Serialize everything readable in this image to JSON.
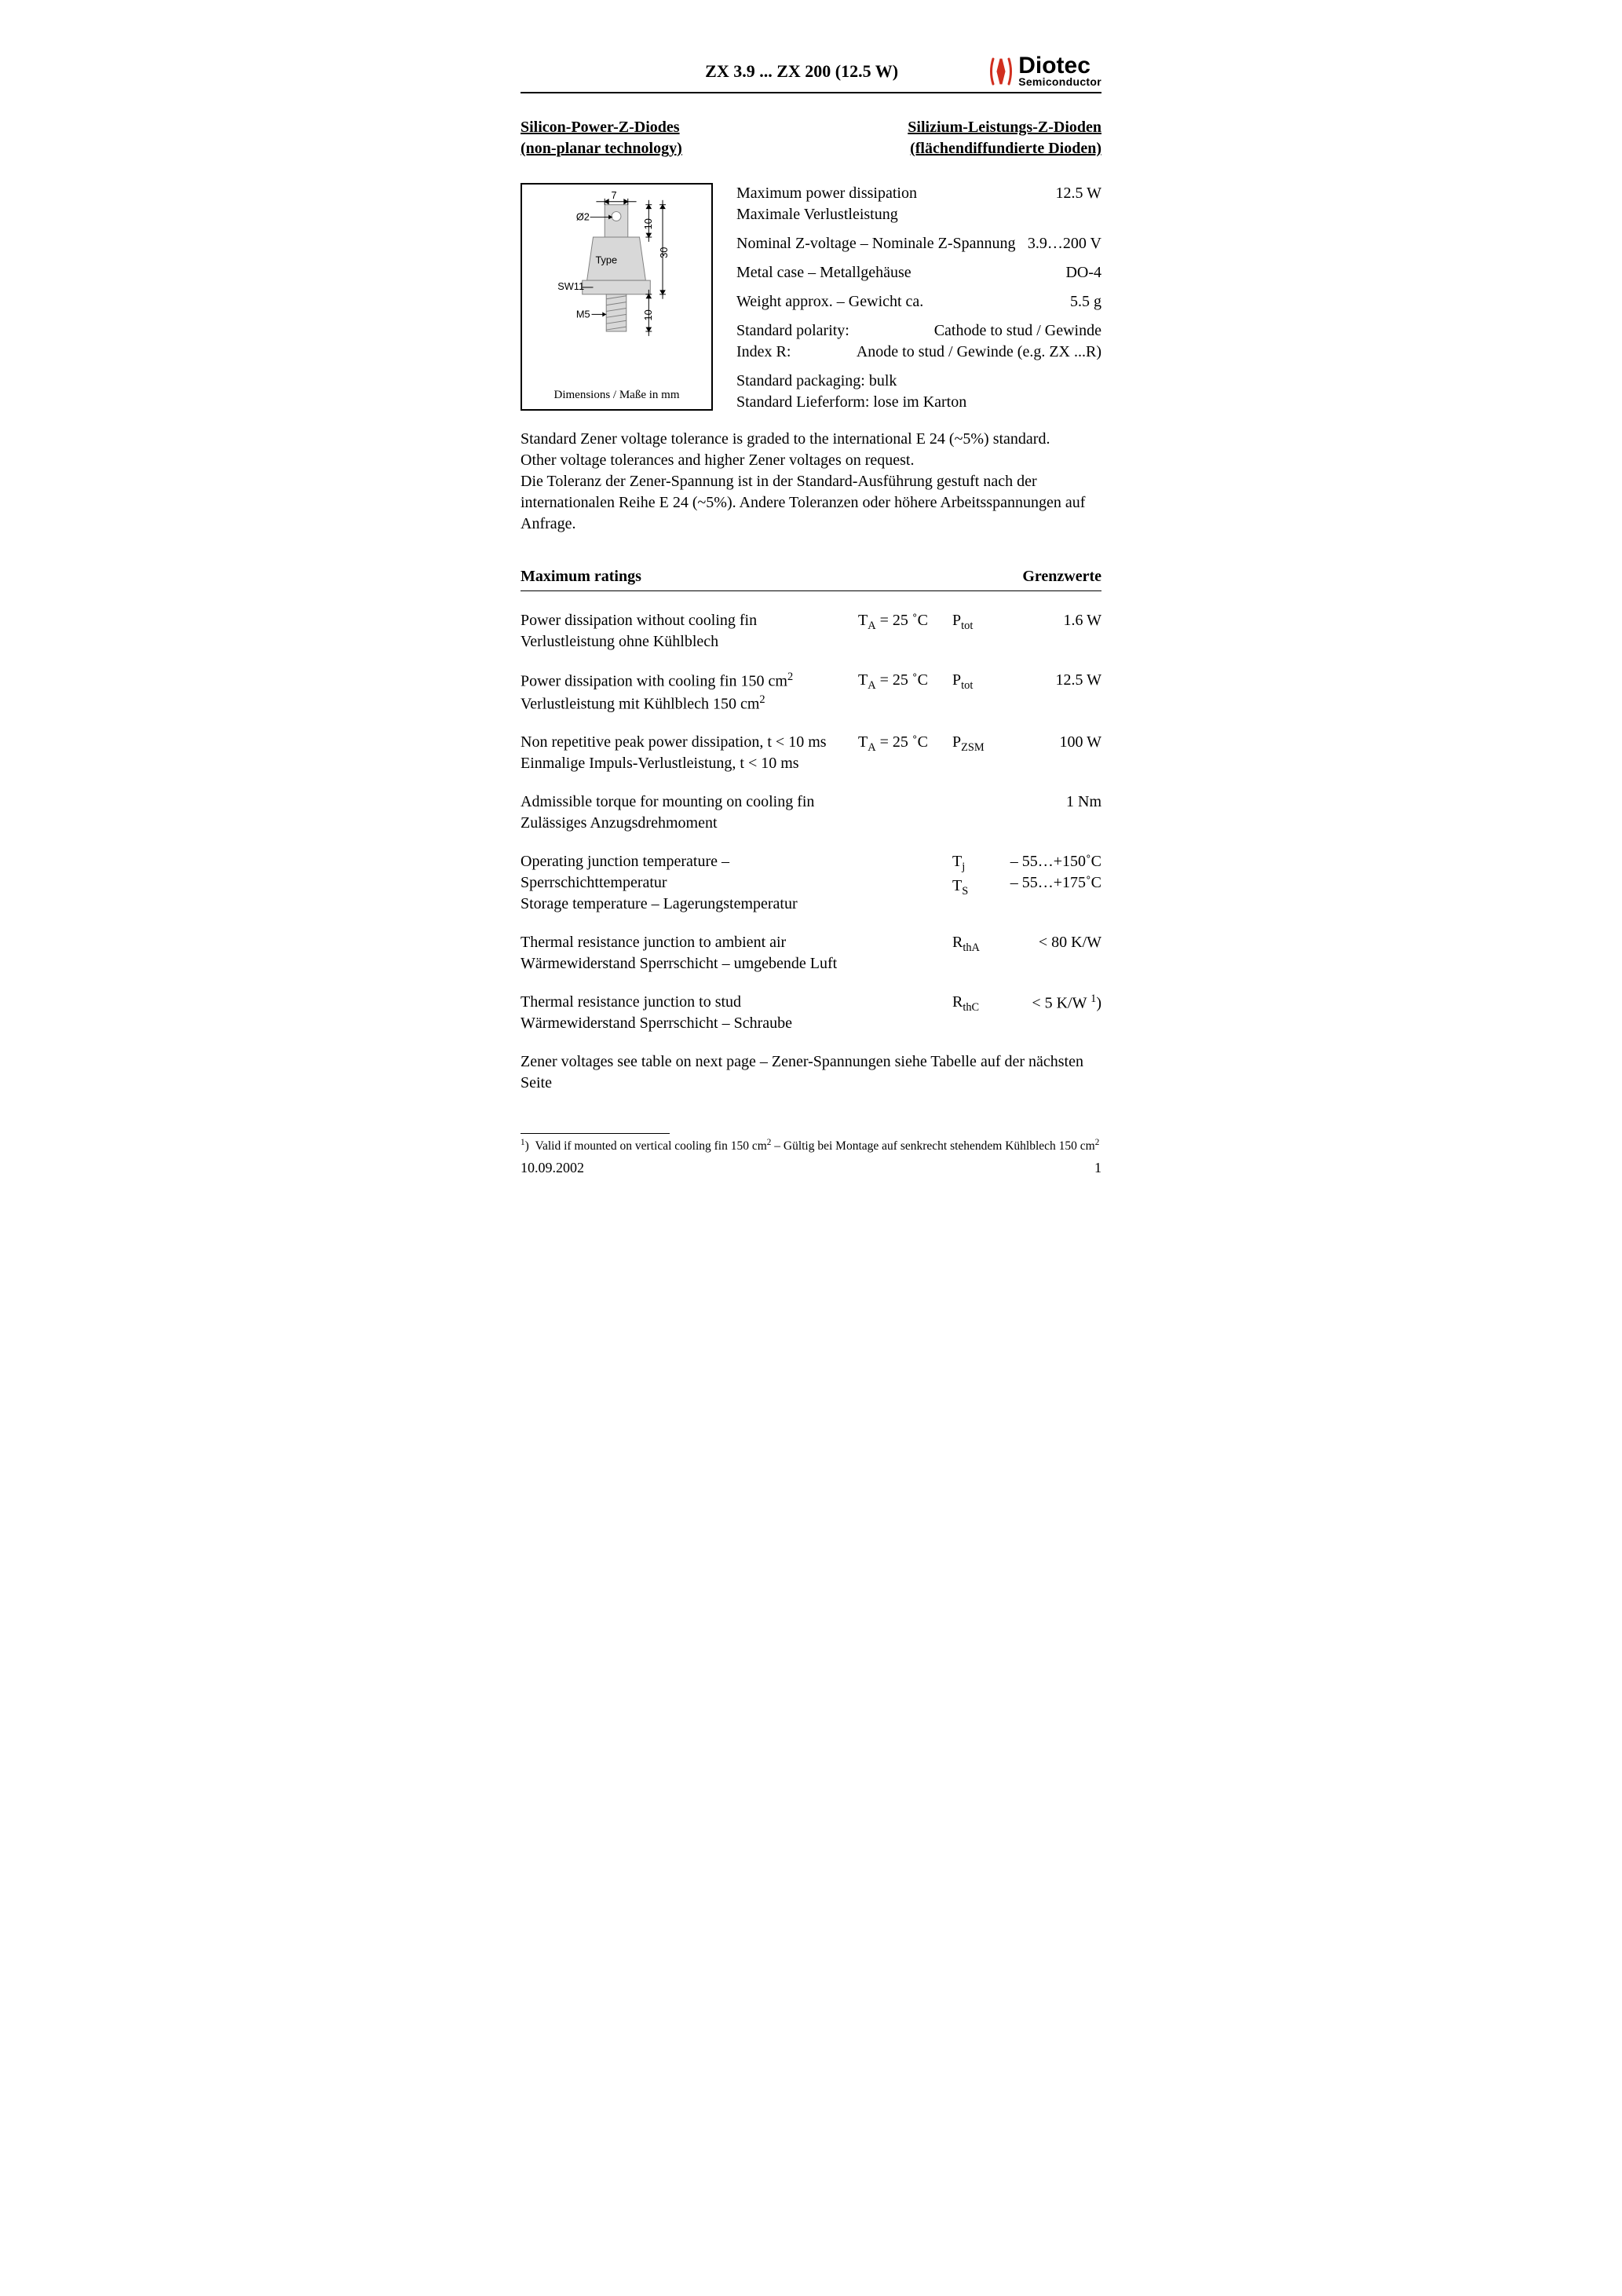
{
  "header": {
    "title": "ZX 3.9 ... ZX 200 (12.5 W)",
    "brand": "Diotec",
    "brand_sub": "Semiconductor",
    "brand_color": "#d12f1f"
  },
  "subtitle": {
    "left_line1": "Silicon-Power-Z-Diodes",
    "left_line2": "(non-planar technology)",
    "right_line1": "Silizium-Leistungs-Z-Dioden",
    "right_line2": "(flächendiffundierte Dioden)"
  },
  "diagram": {
    "caption": "Dimensions / Maße in mm",
    "labels": {
      "top_w": "7",
      "hole_d": "Ø2",
      "top_h": "10",
      "type": "Type",
      "total_h": "30",
      "hex": "SW11",
      "thread_h": "10",
      "thread": "M5"
    },
    "colors": {
      "body_fill": "#d8d8d8",
      "body_stroke": "#808080",
      "dim_stroke": "#000000",
      "label_font": "Arial, sans-serif"
    }
  },
  "specs": [
    {
      "label_en": "Maximum power dissipation",
      "label_de": "Maximale Verlustleistung",
      "value": "12.5 W"
    },
    {
      "label_en": "Nominal Z-voltage – Nominale Z-Spannung",
      "label_de": "",
      "value": "3.9…200 V"
    },
    {
      "label_en": "Metal case – Metallgehäuse",
      "label_de": "",
      "value": "DO-4"
    },
    {
      "label_en": "Weight approx. – Gewicht ca.",
      "label_de": "",
      "value": "5.5 g"
    }
  ],
  "polarity": {
    "l1a": "Standard polarity:",
    "l1b": "Cathode to stud / Gewinde",
    "l2a": "Index R:",
    "l2b": "Anode to stud / Gewinde (e.g. ZX ...R)"
  },
  "packaging": {
    "en": "Standard packaging: bulk",
    "de": "Standard Lieferform: lose im Karton"
  },
  "tolerance": {
    "p1": "Standard Zener voltage tolerance is graded to the international E 24 (~5%) standard.",
    "p2": "Other voltage tolerances and higher Zener voltages on request.",
    "p3": "Die Toleranz der Zener-Spannung ist in der Standard-Ausführung gestuft nach der internationalen Reihe E 24 (~5%). Andere Toleranzen oder höhere Arbeitsspannungen auf Anfrage."
  },
  "ratings_header": {
    "left": "Maximum ratings",
    "right": "Grenzwerte"
  },
  "ratings": [
    {
      "en": "Power dissipation without cooling fin",
      "de": "Verlustleistung ohne Kühlblech",
      "cond_html": "T<span class=\"sub\">A</span> = 25 ˚C",
      "sym_html": "P<span class=\"sub\">tot</span>",
      "val": "1.6 W"
    },
    {
      "en": "Power dissipation with cooling fin 150 cm<span class=\"sup\">2</span>",
      "de": "Verlustleistung mit Kühlblech 150 cm<span class=\"sup\">2</span>",
      "cond_html": "T<span class=\"sub\">A</span> = 25 ˚C",
      "sym_html": "P<span class=\"sub\">tot</span>",
      "val": "12.5 W"
    },
    {
      "en": "Non repetitive peak power dissipation, t < 10 ms",
      "de": "Einmalige Impuls-Verlustleistung, t < 10 ms",
      "cond_html": "T<span class=\"sub\">A</span> = 25 ˚C",
      "sym_html": "P<span class=\"sub\">ZSM</span>",
      "val": "100 W"
    },
    {
      "en": "Admissible torque for mounting on cooling fin",
      "de": "Zulässiges Anzugsdrehmoment",
      "cond_html": "",
      "sym_html": "",
      "val": "1 Nm"
    },
    {
      "en": "Operating junction temperature – Sperrschichttemperatur",
      "de": "Storage temperature – Lagerungstemperatur",
      "cond_html": "",
      "sym_html": "T<span class=\"sub\">j</span><br>T<span class=\"sub\">S</span>",
      "val_html": "– 55…+150˚C<br>– 55…+175˚C"
    },
    {
      "en": "Thermal resistance junction to ambient air",
      "de": "Wärmewiderstand Sperrschicht – umgebende Luft",
      "cond_html": "",
      "sym_html": "R<span class=\"sub\">thA</span>",
      "val": "< 80 K/W"
    },
    {
      "en": "Thermal resistance junction to stud",
      "de": "Wärmewiderstand Sperrschicht – Schraube",
      "cond_html": "",
      "sym_html": "R<span class=\"sub\">thC</span>",
      "val_html": "< 5 K/W <span class=\"sup\">1</span>)"
    }
  ],
  "see_next": "Zener voltages see table on next page – Zener-Spannungen siehe Tabelle auf der nächsten Seite",
  "footnote": "<span class=\"sup\">1</span>)&nbsp;&nbsp;Valid if mounted on vertical cooling fin 150 cm<span class=\"sup\">2</span> – Gültig bei Montage auf senkrecht stehendem Kühlblech 150 cm<span class=\"sup\">2</span>",
  "footer": {
    "date": "10.09.2002",
    "page": "1"
  }
}
